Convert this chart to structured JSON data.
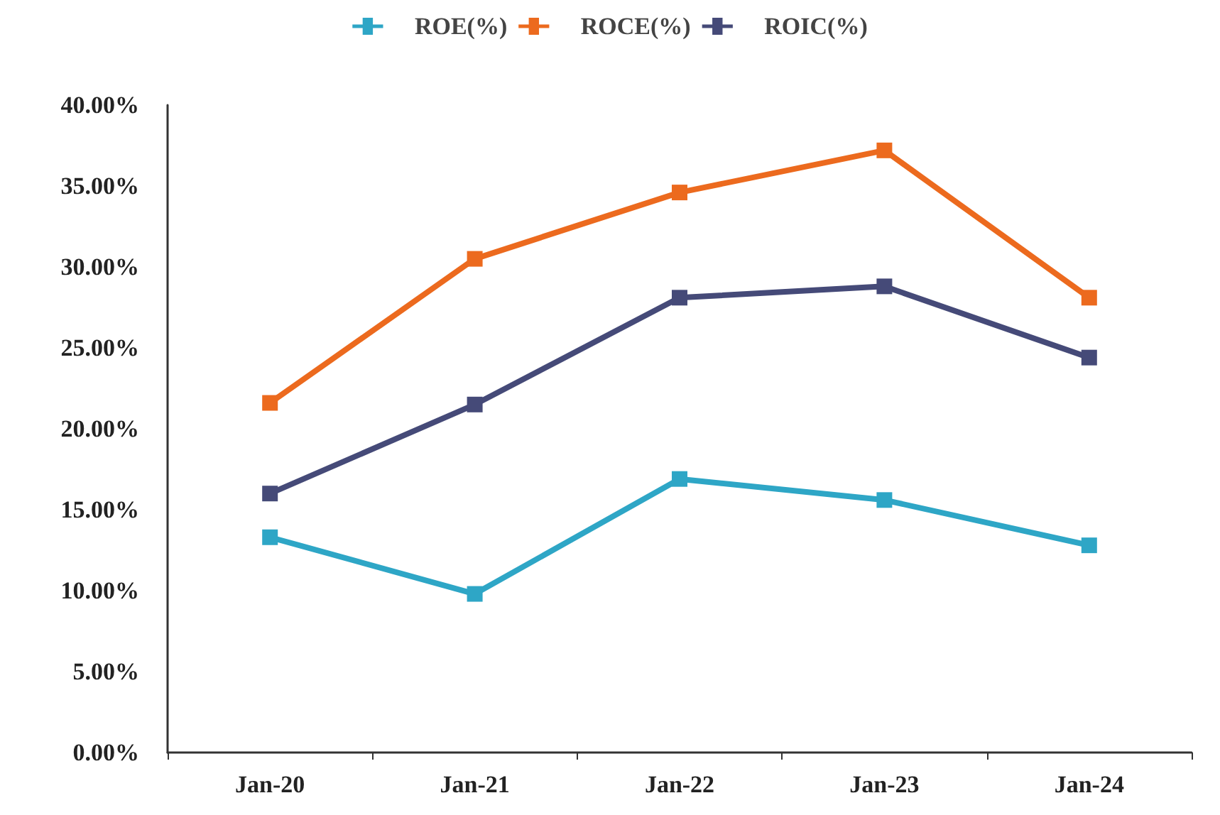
{
  "chart_data": {
    "type": "line",
    "categories": [
      "Jan-20",
      "Jan-21",
      "Jan-22",
      "Jan-23",
      "Jan-24"
    ],
    "series": [
      {
        "name": "ROE(%)",
        "color": "#2ea6c6",
        "values": [
          13.3,
          9.8,
          16.9,
          15.6,
          12.8
        ]
      },
      {
        "name": "ROCE(%)",
        "color": "#ec6a1e",
        "values": [
          21.6,
          30.5,
          34.6,
          37.2,
          28.1
        ]
      },
      {
        "name": "ROIC(%)",
        "color": "#454a78",
        "values": [
          16.0,
          21.5,
          28.1,
          28.8,
          24.4
        ]
      }
    ],
    "ylim": [
      0,
      40
    ],
    "yticks": [
      {
        "value": 0,
        "label": "0.00%"
      },
      {
        "value": 5,
        "label": "5.00%"
      },
      {
        "value": 10,
        "label": "10.00%"
      },
      {
        "value": 15,
        "label": "15.00%"
      },
      {
        "value": 20,
        "label": "20.00%"
      },
      {
        "value": 25,
        "label": "25.00%"
      },
      {
        "value": 30,
        "label": "30.00%"
      },
      {
        "value": 35,
        "label": "35.00%"
      },
      {
        "value": 40,
        "label": "40.00%"
      }
    ],
    "grid": false,
    "legend": "top",
    "marker": "square",
    "line_style": "solid"
  }
}
